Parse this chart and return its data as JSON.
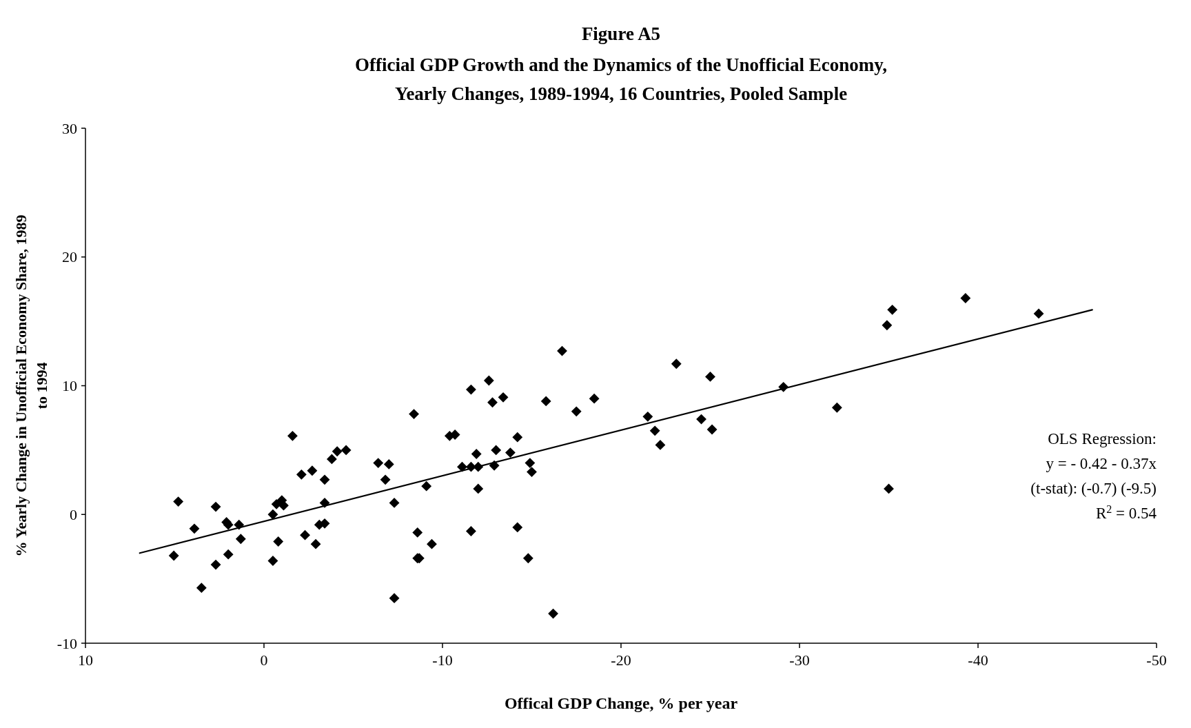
{
  "chart_data": {
    "type": "scatter",
    "title": "Figure A5",
    "subtitle": "Official GDP Growth and the Dynamics of the Unofficial Economy, Yearly Changes, 1989-1994, 16 Countries, Pooled Sample",
    "xlabel": "Offical GDP Change, % per year",
    "ylabel": "% Yearly Change in Unofficial Economy Share, 1989 to 1994",
    "xlim": [
      10,
      -50
    ],
    "xticks": [
      10,
      0,
      -10,
      -20,
      -30,
      -40,
      -50
    ],
    "ylim": [
      -10,
      30
    ],
    "yticks": [
      -10,
      0,
      10,
      20,
      30
    ],
    "grid": false,
    "marker": "diamond",
    "series": [
      {
        "color": "#000000",
        "x": [
          5.05,
          4.8,
          3.9,
          3.5,
          2.7,
          2.7,
          2.1,
          2.0,
          2.0,
          1.4,
          1.3,
          -0.5,
          -0.5,
          -0.7,
          -0.8,
          -1.0,
          -1.1,
          -1.6,
          -2.1,
          -2.3,
          -2.7,
          -2.9,
          -3.1,
          -3.4,
          -3.4,
          -3.4,
          -3.8,
          -4.1,
          -4.6,
          -6.4,
          -6.8,
          -7.0,
          -7.3,
          -7.3,
          -8.4,
          -8.6,
          -8.6,
          -8.7,
          -9.1,
          -9.4,
          -10.4,
          -10.7,
          -11.1,
          -11.6,
          -11.6,
          -11.6,
          -11.9,
          -12.0,
          -12.0,
          -12.6,
          -12.8,
          -12.9,
          -13.0,
          -13.4,
          -13.8,
          -14.2,
          -14.2,
          -14.8,
          -14.9,
          -15.0,
          -15.8,
          -16.2,
          -16.7,
          -17.5,
          -18.5,
          -21.5,
          -21.9,
          -22.2,
          -23.1,
          -24.5,
          -25.0,
          -25.1,
          -29.1,
          -32.1,
          -34.9,
          -35.0,
          -35.2,
          -39.3,
          -43.4
        ],
        "values": [
          -3.2,
          1.0,
          -1.1,
          -5.7,
          0.6,
          -3.9,
          -0.6,
          -0.8,
          -3.1,
          -0.8,
          -1.9,
          0.0,
          -3.6,
          0.8,
          -2.1,
          1.1,
          0.7,
          6.1,
          3.1,
          -1.6,
          3.4,
          -2.3,
          -0.8,
          -0.7,
          2.7,
          0.9,
          4.3,
          4.9,
          5.0,
          4.0,
          2.7,
          3.9,
          0.9,
          -6.5,
          7.8,
          -1.4,
          -3.4,
          -3.4,
          2.2,
          -2.3,
          6.1,
          6.2,
          3.7,
          3.7,
          9.7,
          -1.3,
          4.7,
          3.7,
          2.0,
          10.4,
          8.7,
          3.8,
          5.0,
          9.1,
          4.8,
          6.0,
          -1.0,
          -3.4,
          4.0,
          3.3,
          8.8,
          -7.7,
          12.7,
          8.0,
          9.0,
          7.6,
          6.5,
          5.4,
          11.7,
          7.4,
          10.7,
          6.6,
          9.9,
          8.3,
          14.7,
          2.0,
          15.9,
          16.8,
          15.6
        ]
      },
      {
        "type": "line",
        "color": "#000000",
        "marker": "none",
        "x": [
          6.96,
          -46.4
        ],
        "values": [
          -3.0,
          15.9
        ]
      }
    ],
    "annotations": [
      "OLS Regression:",
      "y =  - 0.42  -  0.37x",
      "(t-stat):  (-0.7)  (-9.5)",
      "R$^{2}$ = 0.54"
    ]
  }
}
